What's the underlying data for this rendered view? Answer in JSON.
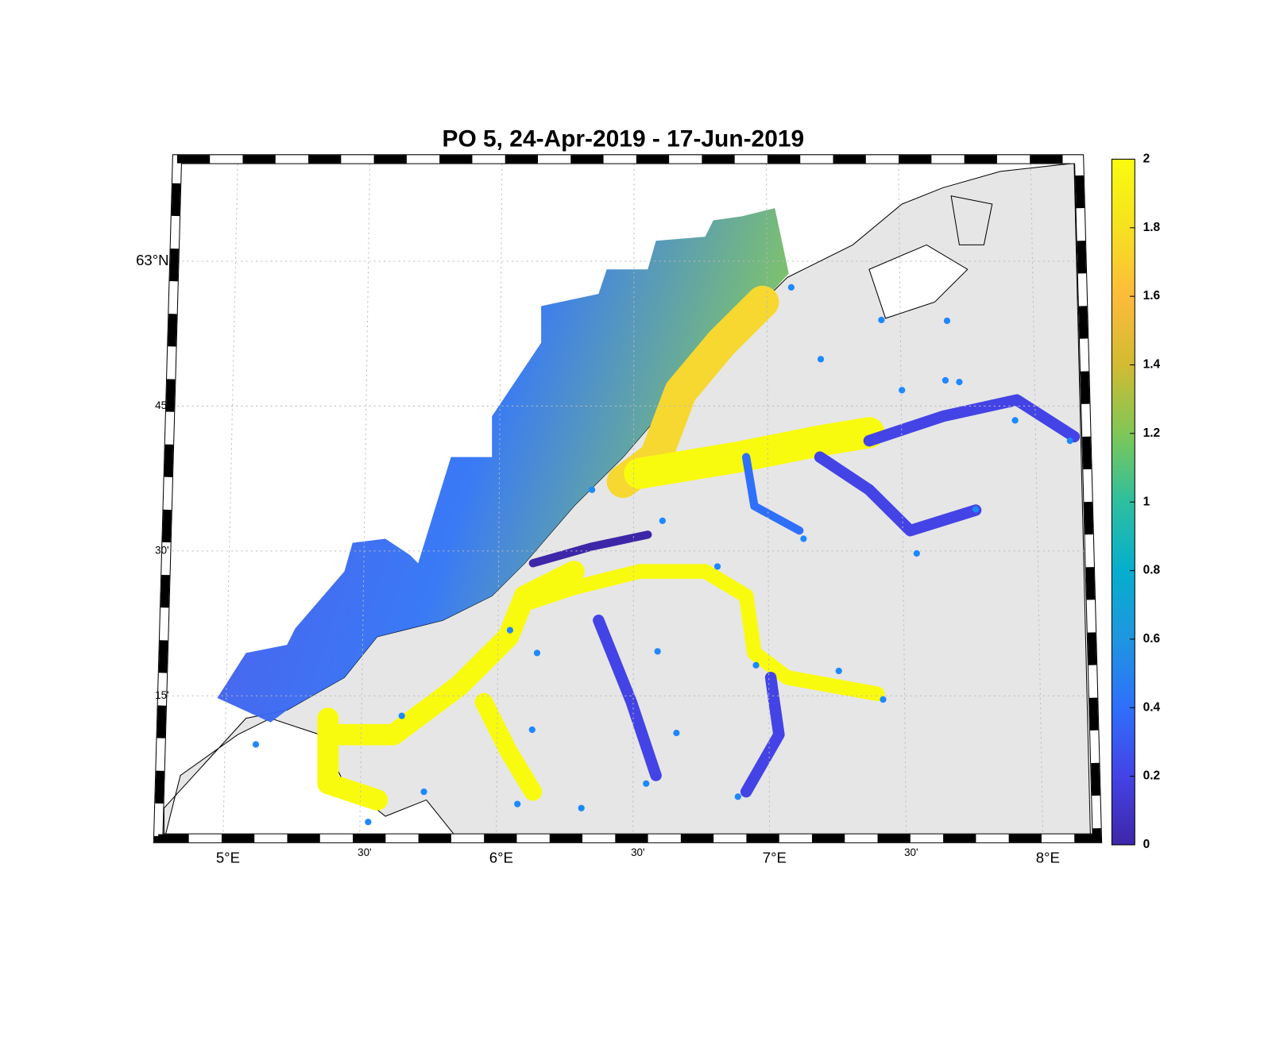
{
  "title": "PO 5, 24-Apr-2019  - 17-Jun-2019",
  "map": {
    "lat_ticks": [
      {
        "value": 63,
        "label": "63°N"
      },
      {
        "value": 62.75,
        "label": "45'"
      },
      {
        "value": 62.5,
        "label": "30'"
      },
      {
        "value": 62.25,
        "label": "15'"
      }
    ],
    "lon_ticks": [
      {
        "value": 5,
        "label": "5°E"
      },
      {
        "value": 5.5,
        "label": "30'"
      },
      {
        "value": 6,
        "label": "6°E"
      },
      {
        "value": 6.5,
        "label": "30'"
      },
      {
        "value": 7,
        "label": "7°E"
      },
      {
        "value": 7.5,
        "label": "30'"
      },
      {
        "value": 8,
        "label": "8°E"
      }
    ],
    "grid": true
  },
  "colorbar": {
    "lim": [
      0,
      2
    ],
    "ticks": [
      0,
      0.2,
      0.4,
      0.6,
      0.8,
      1,
      1.2,
      1.4,
      1.6,
      1.8,
      2
    ],
    "colormap": [
      "#3e26a8",
      "#4443e6",
      "#2f6ffb",
      "#1e96e0",
      "#06aecd",
      "#2cbf9f",
      "#7fc756",
      "#d2bb32",
      "#fdbb3a",
      "#f6e120",
      "#f9fb0e"
    ]
  }
}
